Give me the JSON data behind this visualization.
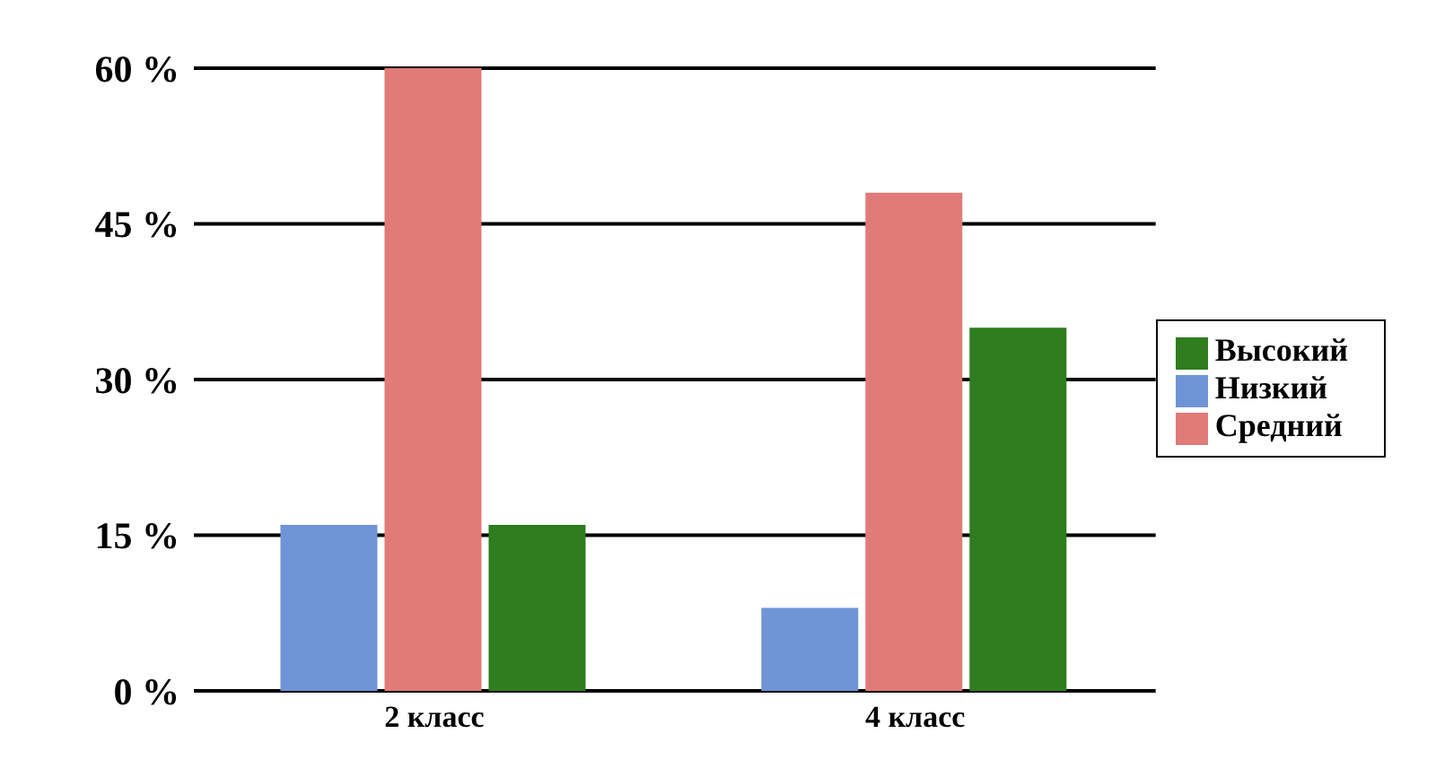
{
  "chart_data": {
    "type": "bar",
    "categories": [
      "2 класс",
      "4 класс"
    ],
    "series": [
      {
        "name": "Низкий",
        "color": "#6f94d6",
        "values": [
          16,
          8
        ]
      },
      {
        "name": "Средний",
        "color": "#e07b78",
        "values": [
          60,
          48
        ]
      },
      {
        "name": "Высокий",
        "color": "#2e7d1f",
        "values": [
          16,
          35
        ]
      }
    ],
    "ylim": [
      0,
      60
    ],
    "yticks": [
      {
        "value": 0,
        "label": "0 %"
      },
      {
        "value": 15,
        "label": "15 %"
      },
      {
        "value": 30,
        "label": "30 %"
      },
      {
        "value": 45,
        "label": "45 %"
      },
      {
        "value": 60,
        "label": "60 %"
      }
    ],
    "grid": "y",
    "legend": "right"
  }
}
